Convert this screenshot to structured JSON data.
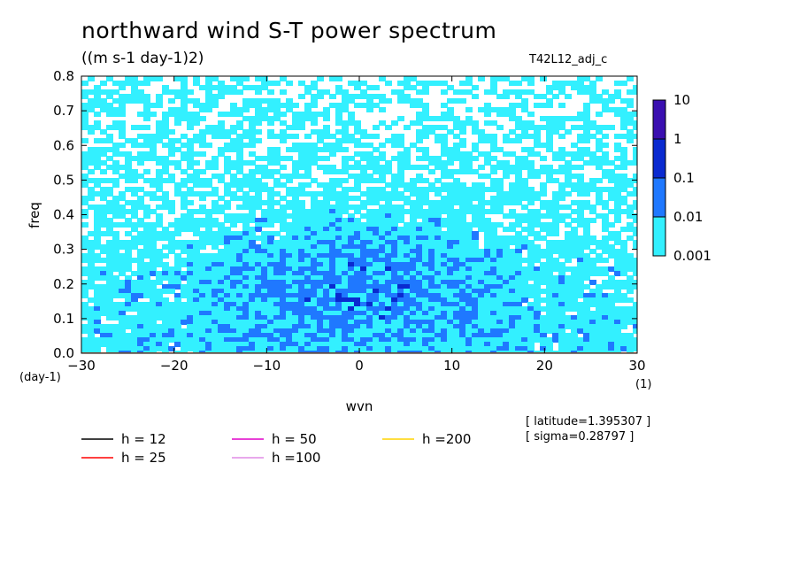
{
  "header": {
    "title": "northward wind S-T power spectrum",
    "units": "((m s-1 day-1)2)",
    "experiment": "T42L12_adj_c",
    "latitude_note": "[ latitude=1.395307 ]",
    "sigma_note": "[ sigma=0.28797 ]"
  },
  "chart_data": {
    "type": "heatmap",
    "title": "northward wind S-T power spectrum",
    "subtitle": "((m s-1 day-1)2)",
    "xlabel": "wvn",
    "ylabel": "freq",
    "x_unit": "(1)",
    "y_unit": "(day-1)",
    "xlim": [
      -30,
      30
    ],
    "ylim": [
      0,
      0.8
    ],
    "xticks": [
      -30,
      -20,
      -10,
      0,
      10,
      20,
      30
    ],
    "yticks": [
      0.0,
      0.1,
      0.2,
      0.3,
      0.4,
      0.5,
      0.6,
      0.7,
      0.8
    ],
    "colorbar": {
      "levels": [
        "0.001",
        "0.01",
        "0.1",
        "1",
        "10"
      ],
      "colors": [
        "#33f0ff",
        "#1f78ff",
        "#0a2ad0",
        "#3a0fb0"
      ]
    },
    "dispersion_curves": [
      {
        "label": "h = 12",
        "h": 12,
        "color": "#000000"
      },
      {
        "label": "h = 25",
        "h": 25,
        "color": "#ff0000"
      },
      {
        "label": "h = 50",
        "h": 50,
        "color": "#e000c8"
      },
      {
        "label": "h =100",
        "h": 100,
        "color": "#e08ce6"
      },
      {
        "label": "h =200",
        "h": 200,
        "color": "#ffd400"
      }
    ],
    "grid": false,
    "legend_position": "bottom"
  }
}
